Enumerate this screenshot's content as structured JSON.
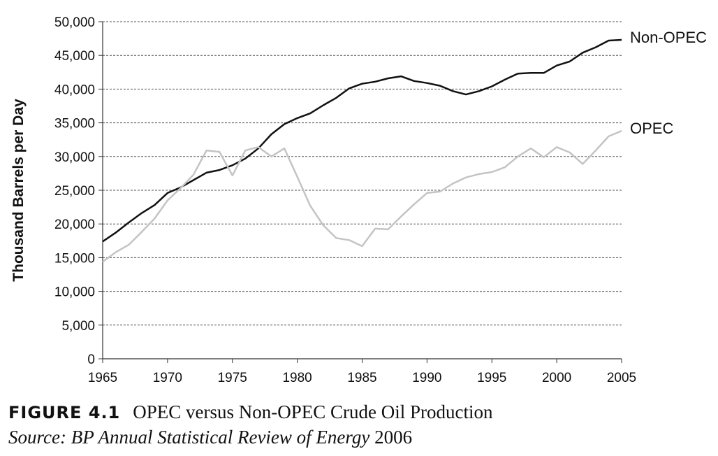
{
  "caption": {
    "figure_label": "FIGURE 4.1",
    "title": "OPEC versus Non-OPEC Crude Oil Production",
    "source_prefix": "Source:",
    "source_text": "BP Annual Statistical Review of Energy",
    "source_year": "2006"
  },
  "chart_data": {
    "type": "line",
    "ylabel": "Thousand Barrels per Day",
    "xlabel": "",
    "xlim": [
      1965,
      2005
    ],
    "ylim": [
      0,
      50000
    ],
    "x_ticks": [
      1965,
      1970,
      1975,
      1980,
      1985,
      1990,
      1995,
      2000,
      2005
    ],
    "x_tick_labels": [
      "1965",
      "1970",
      "1975",
      "1980",
      "1985",
      "1990",
      "1995",
      "2000",
      "2005"
    ],
    "y_ticks": [
      0,
      5000,
      10000,
      15000,
      20000,
      25000,
      30000,
      35000,
      40000,
      45000,
      50000
    ],
    "y_tick_labels": [
      "0",
      "5,000",
      "10,000",
      "15,000",
      "20,000",
      "25,000",
      "30,000",
      "35,000",
      "40,000",
      "45,000",
      "50,000"
    ],
    "grid": "horizontal dashed",
    "legend": "direct labels at right end of lines",
    "x": [
      1965,
      1966,
      1967,
      1968,
      1969,
      1970,
      1971,
      1972,
      1973,
      1974,
      1975,
      1976,
      1977,
      1978,
      1979,
      1980,
      1981,
      1982,
      1983,
      1984,
      1985,
      1986,
      1987,
      1988,
      1989,
      1990,
      1991,
      1992,
      1993,
      1994,
      1995,
      1996,
      1997,
      1998,
      1999,
      2000,
      2001,
      2002,
      2003,
      2004,
      2005
    ],
    "series": [
      {
        "name": "Non-OPEC",
        "color": "#111111",
        "values": [
          17400,
          18700,
          20200,
          21600,
          22800,
          24600,
          25400,
          26500,
          27600,
          28000,
          28700,
          29700,
          31200,
          33300,
          34800,
          35700,
          36400,
          37600,
          38700,
          40100,
          40800,
          41100,
          41600,
          41900,
          41200,
          40900,
          40500,
          39700,
          39200,
          39700,
          40400,
          41400,
          42300,
          42400,
          42400,
          43500,
          44100,
          45400,
          46200,
          47200,
          47300
        ]
      },
      {
        "name": "OPEC",
        "color": "#c4c4c4",
        "values": [
          14400,
          15800,
          16900,
          18800,
          20800,
          23500,
          25300,
          27300,
          30900,
          30700,
          27200,
          30900,
          31400,
          30000,
          31200,
          27000,
          22700,
          19800,
          17900,
          17600,
          16700,
          19300,
          19200,
          21100,
          22900,
          24600,
          24800,
          26000,
          26900,
          27400,
          27700,
          28400,
          30000,
          31200,
          29900,
          31400,
          30600,
          28900,
          30900,
          33000,
          33800
        ]
      }
    ]
  }
}
